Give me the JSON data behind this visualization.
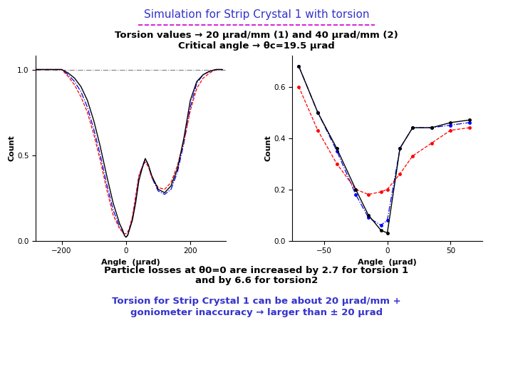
{
  "title": "Simulation for Strip Crystal 1 with torsion",
  "title_color": "#3333CC",
  "title_underline_color": "#CC00CC",
  "subtitle1": "Torsion values → 20 μrad/mm (1) and 40 μrad/mm (2)",
  "subtitle2": "Critical angle → θc=19.5 μrad",
  "note1": "Particle losses at θ0=0 are increased by 2.7 for torsion 1",
  "note2": "and by 6.6 for torsion2",
  "note3": "Torsion for Strip Crystal 1 can be about 20 μrad/mm +",
  "note4": "goniometer inaccuracy → larger than ± 20 μrad",
  "note3_color": "#3333CC",
  "background_color": "#FFFFFF",
  "left_plot": {
    "xlabel": "Angle  (μrad)",
    "ylabel": "Count",
    "xlim": [
      -280,
      310
    ],
    "ylim": [
      0,
      1.08
    ],
    "yticks": [
      0,
      0.5,
      1
    ],
    "xticks": [
      -200,
      0,
      200
    ],
    "ref_line_y": 1.0,
    "black_x": [
      -280,
      -250,
      -220,
      -200,
      -180,
      -160,
      -140,
      -120,
      -100,
      -80,
      -60,
      -40,
      -20,
      -10,
      -5,
      0,
      5,
      10,
      20,
      30,
      40,
      50,
      60,
      70,
      80,
      100,
      120,
      140,
      160,
      180,
      200,
      220,
      240,
      260,
      280,
      300
    ],
    "black_y": [
      1.0,
      1.0,
      1.0,
      1.0,
      0.98,
      0.95,
      0.9,
      0.82,
      0.7,
      0.55,
      0.38,
      0.22,
      0.1,
      0.06,
      0.03,
      0.02,
      0.03,
      0.06,
      0.12,
      0.22,
      0.35,
      0.42,
      0.48,
      0.44,
      0.38,
      0.3,
      0.28,
      0.32,
      0.42,
      0.6,
      0.82,
      0.93,
      0.97,
      0.99,
      1.0,
      1.0
    ],
    "blue_x": [
      -280,
      -250,
      -220,
      -200,
      -180,
      -160,
      -140,
      -120,
      -100,
      -80,
      -60,
      -40,
      -20,
      -10,
      -5,
      0,
      5,
      10,
      20,
      30,
      40,
      50,
      60,
      70,
      80,
      100,
      120,
      140,
      160,
      180,
      200,
      220,
      240,
      260,
      280,
      300
    ],
    "blue_y": [
      1.0,
      1.0,
      1.0,
      1.0,
      0.97,
      0.93,
      0.87,
      0.78,
      0.65,
      0.5,
      0.33,
      0.18,
      0.08,
      0.05,
      0.03,
      0.02,
      0.03,
      0.06,
      0.13,
      0.24,
      0.37,
      0.43,
      0.48,
      0.44,
      0.37,
      0.29,
      0.27,
      0.3,
      0.4,
      0.57,
      0.78,
      0.92,
      0.97,
      0.99,
      1.0,
      1.0
    ],
    "red_x": [
      -280,
      -250,
      -220,
      -200,
      -180,
      -160,
      -140,
      -120,
      -100,
      -80,
      -60,
      -40,
      -20,
      -10,
      -5,
      0,
      5,
      10,
      20,
      30,
      40,
      50,
      60,
      70,
      80,
      100,
      120,
      140,
      160,
      180,
      200,
      220,
      240,
      260,
      280,
      300
    ],
    "red_y": [
      1.0,
      1.0,
      1.0,
      1.0,
      0.96,
      0.91,
      0.84,
      0.75,
      0.62,
      0.47,
      0.3,
      0.15,
      0.07,
      0.05,
      0.04,
      0.04,
      0.05,
      0.07,
      0.14,
      0.26,
      0.38,
      0.43,
      0.46,
      0.43,
      0.37,
      0.31,
      0.3,
      0.34,
      0.44,
      0.58,
      0.76,
      0.89,
      0.95,
      0.98,
      1.0,
      1.0
    ]
  },
  "right_plot": {
    "xlabel": "Angle  (μrad)",
    "ylabel": "Count",
    "xlim": [
      -75,
      75
    ],
    "ylim": [
      0,
      0.72
    ],
    "yticks": [
      0,
      0.2,
      0.4,
      0.6
    ],
    "xticks": [
      -50,
      0,
      50
    ],
    "black_x": [
      -70,
      -55,
      -40,
      -25,
      -15,
      -5,
      0,
      10,
      20,
      35,
      50,
      65
    ],
    "black_y": [
      0.68,
      0.5,
      0.36,
      0.2,
      0.1,
      0.04,
      0.03,
      0.36,
      0.44,
      0.44,
      0.46,
      0.47
    ],
    "blue_x": [
      -70,
      -55,
      -40,
      -25,
      -15,
      -5,
      0,
      10,
      20,
      35,
      50,
      65
    ],
    "blue_y": [
      0.68,
      0.5,
      0.35,
      0.18,
      0.09,
      0.06,
      0.08,
      0.36,
      0.44,
      0.44,
      0.45,
      0.46
    ],
    "red_x": [
      -70,
      -55,
      -40,
      -25,
      -15,
      -5,
      0,
      10,
      20,
      35,
      50,
      65
    ],
    "red_y": [
      0.6,
      0.43,
      0.3,
      0.2,
      0.18,
      0.19,
      0.2,
      0.26,
      0.33,
      0.38,
      0.43,
      0.44
    ]
  }
}
